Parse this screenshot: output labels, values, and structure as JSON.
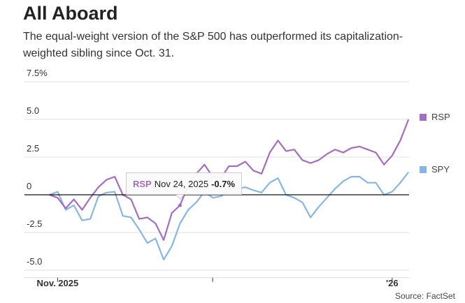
{
  "title": "All Aboard",
  "subtitle": "The equal-weight version of the S&P 500 has outperformed its capitalization-weighted sibling since Oct. 31.",
  "source": "Source: FactSet",
  "tooltip": {
    "series": "RSP",
    "date": "Nov 24, 2025",
    "value": "-0.7%"
  },
  "chart_data": {
    "type": "line",
    "title": "All Aboard",
    "ylim": [
      -5.5,
      7.5
    ],
    "yticks": [
      -5,
      -2.5,
      0,
      2.5,
      5,
      7.5
    ],
    "ytick_labels": [
      "-5.0",
      "-2.5",
      "0",
      "2.5",
      "5.0",
      "7.5%"
    ],
    "xtick_labels": [
      {
        "index": 1,
        "label": "Nov. 2025"
      },
      {
        "index": 20,
        "label": ""
      },
      {
        "index": 42,
        "label": "'26"
      }
    ],
    "grid": true,
    "legend": "right",
    "x": [
      "2025-10-31",
      "2025-11-03",
      "2025-11-04",
      "2025-11-05",
      "2025-11-06",
      "2025-11-07",
      "2025-11-10",
      "2025-11-11",
      "2025-11-12",
      "2025-11-13",
      "2025-11-14",
      "2025-11-17",
      "2025-11-18",
      "2025-11-19",
      "2025-11-20",
      "2025-11-21",
      "2025-11-24",
      "2025-11-25",
      "2025-11-26",
      "2025-11-28",
      "2025-12-01",
      "2025-12-02",
      "2025-12-03",
      "2025-12-04",
      "2025-12-05",
      "2025-12-08",
      "2025-12-09",
      "2025-12-10",
      "2025-12-11",
      "2025-12-12",
      "2025-12-15",
      "2025-12-16",
      "2025-12-17",
      "2025-12-18",
      "2025-12-19",
      "2025-12-22",
      "2025-12-23",
      "2025-12-24",
      "2025-12-26",
      "2025-12-29",
      "2025-12-30",
      "2025-12-31",
      "2026-01-02",
      "2026-01-05",
      "2026-01-06"
    ],
    "series": [
      {
        "name": "RSP",
        "color": "#a56cc1",
        "values": [
          0,
          -0.2,
          -0.9,
          -0.3,
          -1.0,
          -0.2,
          0.5,
          1.0,
          1.2,
          0.0,
          -0.3,
          -1.6,
          -1.5,
          -1.9,
          -3.0,
          -1.2,
          -0.7,
          0.6,
          1.4,
          2.0,
          1.2,
          1.1,
          1.9,
          1.9,
          2.2,
          1.6,
          1.4,
          2.8,
          3.6,
          2.9,
          3.0,
          2.3,
          2.1,
          2.3,
          2.7,
          3.0,
          2.8,
          3.1,
          3.2,
          3.0,
          2.8,
          2.0,
          2.6,
          3.6,
          5.0
        ]
      },
      {
        "name": "SPY",
        "color": "#86b6e3",
        "values": [
          0,
          0.2,
          -1.0,
          -0.7,
          -1.7,
          -1.6,
          -0.1,
          0.15,
          0.2,
          -1.4,
          -1.5,
          -2.3,
          -3.2,
          -2.9,
          -4.3,
          -3.4,
          -1.9,
          -1.0,
          -0.5,
          0.2,
          -0.2,
          -0.1,
          0.3,
          0.4,
          0.5,
          0.3,
          0.15,
          0.8,
          1.1,
          0.0,
          -0.2,
          -0.5,
          -1.5,
          -0.8,
          -0.2,
          0.4,
          0.9,
          1.2,
          1.2,
          0.8,
          0.8,
          0.0,
          0.2,
          0.8,
          1.5
        ]
      }
    ]
  }
}
